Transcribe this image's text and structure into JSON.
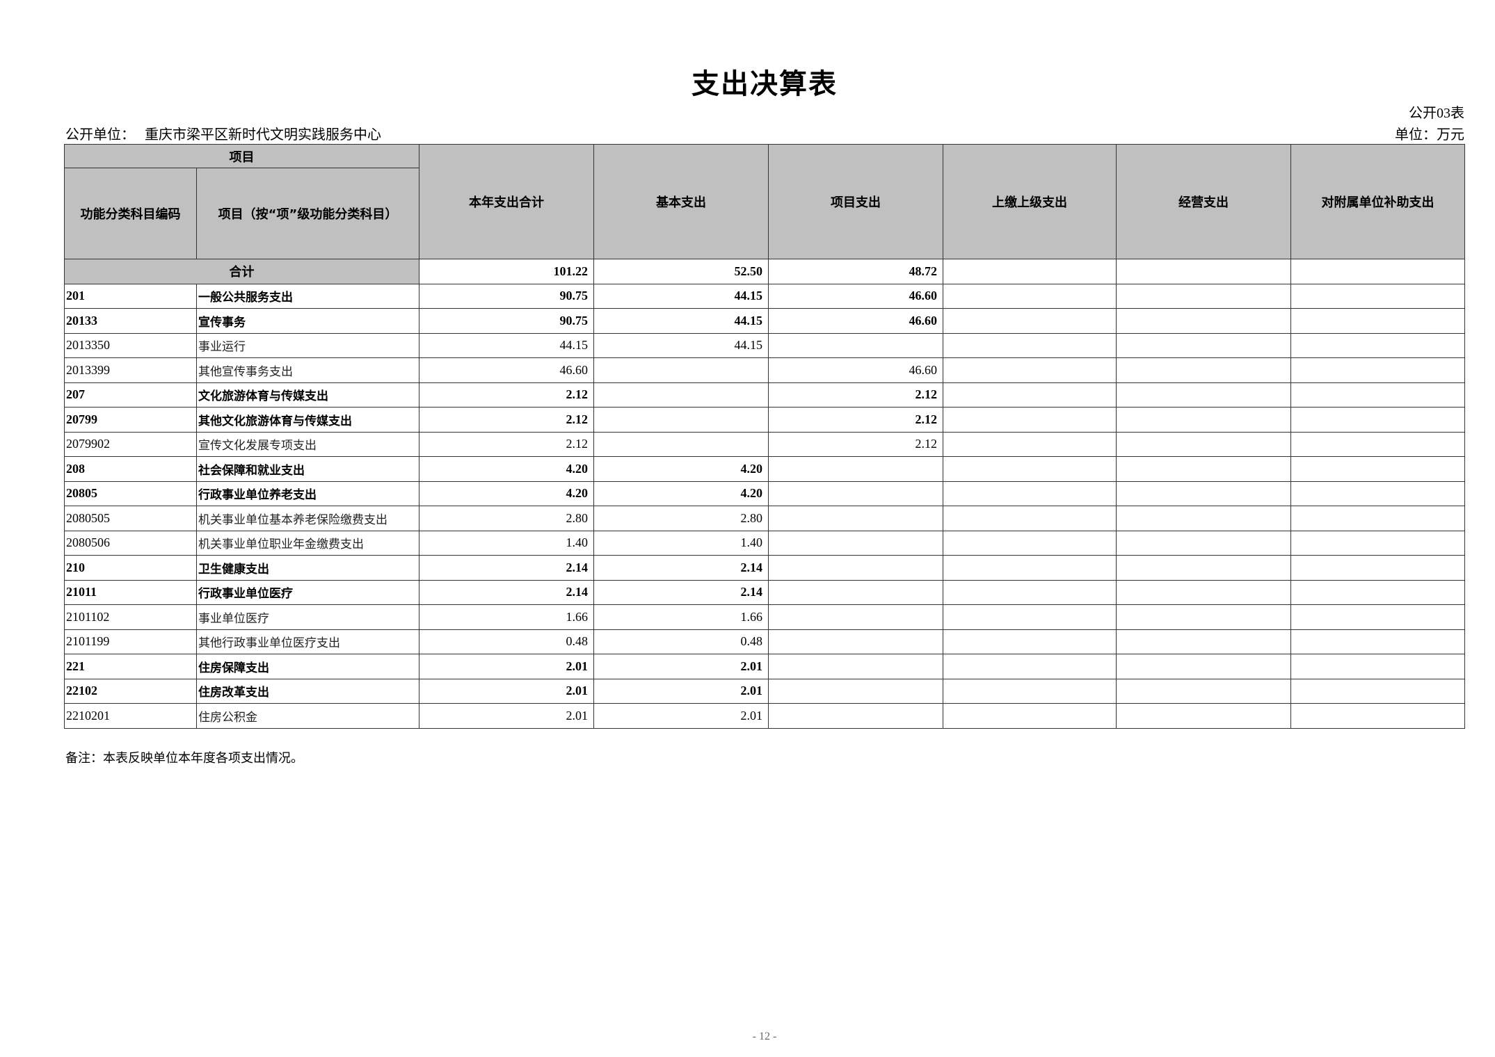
{
  "title": "支出决算表",
  "table_no": "公开03表",
  "unit_label": "公开单位：",
  "unit_name": "重庆市梁平区新时代文明实践服务中心",
  "currency": "单位：万元",
  "header": {
    "group": "项目",
    "code": "功能分类科目编码",
    "name": "项目（按“项”级功能分类科目）",
    "cols": [
      "本年支出合计",
      "基本支出",
      "项目支出",
      "上缴上级支出",
      "经营支出",
      "对附属单位补助支出"
    ]
  },
  "total": {
    "label": "合计",
    "values": [
      "101.22",
      "52.50",
      "48.72",
      "",
      "",
      ""
    ]
  },
  "rows": [
    {
      "code": "201",
      "name": "一般公共服务支出",
      "bold": true,
      "values": [
        "90.75",
        "44.15",
        "46.60",
        "",
        "",
        ""
      ]
    },
    {
      "code": "20133",
      "name": "宣传事务",
      "bold": true,
      "values": [
        "90.75",
        "44.15",
        "46.60",
        "",
        "",
        ""
      ]
    },
    {
      "code": "2013350",
      "name": "事业运行",
      "bold": false,
      "values": [
        "44.15",
        "44.15",
        "",
        "",
        "",
        ""
      ]
    },
    {
      "code": "2013399",
      "name": "其他宣传事务支出",
      "bold": false,
      "values": [
        "46.60",
        "",
        "46.60",
        "",
        "",
        ""
      ]
    },
    {
      "code": "207",
      "name": "文化旅游体育与传媒支出",
      "bold": true,
      "values": [
        "2.12",
        "",
        "2.12",
        "",
        "",
        ""
      ]
    },
    {
      "code": "20799",
      "name": "其他文化旅游体育与传媒支出",
      "bold": true,
      "values": [
        "2.12",
        "",
        "2.12",
        "",
        "",
        ""
      ]
    },
    {
      "code": "2079902",
      "name": "宣传文化发展专项支出",
      "bold": false,
      "values": [
        "2.12",
        "",
        "2.12",
        "",
        "",
        ""
      ]
    },
    {
      "code": "208",
      "name": "社会保障和就业支出",
      "bold": true,
      "values": [
        "4.20",
        "4.20",
        "",
        "",
        "",
        ""
      ]
    },
    {
      "code": "20805",
      "name": "行政事业单位养老支出",
      "bold": true,
      "values": [
        "4.20",
        "4.20",
        "",
        "",
        "",
        ""
      ]
    },
    {
      "code": "2080505",
      "name": "机关事业单位基本养老保险缴费支出",
      "bold": false,
      "values": [
        "2.80",
        "2.80",
        "",
        "",
        "",
        ""
      ]
    },
    {
      "code": "2080506",
      "name": "机关事业单位职业年金缴费支出",
      "bold": false,
      "values": [
        "1.40",
        "1.40",
        "",
        "",
        "",
        ""
      ]
    },
    {
      "code": "210",
      "name": "卫生健康支出",
      "bold": true,
      "values": [
        "2.14",
        "2.14",
        "",
        "",
        "",
        ""
      ]
    },
    {
      "code": "21011",
      "name": "行政事业单位医疗",
      "bold": true,
      "values": [
        "2.14",
        "2.14",
        "",
        "",
        "",
        ""
      ]
    },
    {
      "code": "2101102",
      "name": "事业单位医疗",
      "bold": false,
      "values": [
        "1.66",
        "1.66",
        "",
        "",
        "",
        ""
      ]
    },
    {
      "code": "2101199",
      "name": "其他行政事业单位医疗支出",
      "bold": false,
      "values": [
        "0.48",
        "0.48",
        "",
        "",
        "",
        ""
      ]
    },
    {
      "code": "221",
      "name": "住房保障支出",
      "bold": true,
      "values": [
        "2.01",
        "2.01",
        "",
        "",
        "",
        ""
      ]
    },
    {
      "code": "22102",
      "name": "住房改革支出",
      "bold": true,
      "values": [
        "2.01",
        "2.01",
        "",
        "",
        "",
        ""
      ]
    },
    {
      "code": "2210201",
      "name": "住房公积金",
      "bold": false,
      "values": [
        "2.01",
        "2.01",
        "",
        "",
        "",
        ""
      ]
    }
  ],
  "note": "备注：本表反映单位本年度各项支出情况。",
  "page_number": "- 12 -"
}
